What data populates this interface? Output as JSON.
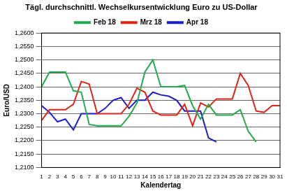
{
  "chart_data": {
    "type": "line",
    "title": "Tägl. durchschnittl. Wechselkursentwicklung Euro zu US-Dollar",
    "x_label": "Kalendertag",
    "y_label": "Euro/USD",
    "categories": [
      "1",
      "2",
      "3",
      "4",
      "5",
      "6",
      "7",
      "8",
      "9",
      "10",
      "11",
      "12",
      "13",
      "14",
      "15",
      "16",
      "17",
      "18",
      "19",
      "20",
      "21",
      "22",
      "23",
      "24",
      "25",
      "26",
      "27",
      "28",
      "29",
      "30",
      "31"
    ],
    "series": [
      {
        "name": "Feb 18",
        "color": "#22aa4c",
        "values": [
          1.24,
          1.2455,
          1.2455,
          1.2455,
          1.2385,
          1.238,
          1.226,
          1.2255,
          1.2255,
          1.2255,
          1.2255,
          1.229,
          1.234,
          1.2455,
          1.25,
          1.24,
          1.24,
          1.24,
          1.2405,
          1.233,
          1.228,
          1.2335,
          1.2295,
          1.2295,
          1.2295,
          1.2315,
          1.2235,
          1.2195,
          null,
          null,
          null
        ]
      },
      {
        "name": "Mrz 18",
        "color": "#e02418",
        "values": [
          1.2275,
          1.2315,
          1.2315,
          1.2315,
          1.2335,
          1.242,
          1.241,
          1.23,
          1.23,
          1.23,
          1.23,
          1.2335,
          1.2395,
          1.238,
          1.231,
          1.2295,
          1.2295,
          1.2295,
          1.2335,
          1.2255,
          1.234,
          1.2325,
          1.2355,
          1.2355,
          1.2355,
          1.245,
          1.2405,
          1.231,
          1.2305,
          1.233,
          1.233
        ]
      },
      {
        "name": "Apr 18",
        "color": "#1c1cc8",
        "values": [
          1.233,
          1.2305,
          1.227,
          1.228,
          1.224,
          1.23,
          1.23,
          1.23,
          1.232,
          1.235,
          1.236,
          1.232,
          1.235,
          1.235,
          1.238,
          1.237,
          1.2365,
          1.235,
          1.231,
          1.231,
          1.231,
          1.221,
          1.2195,
          null,
          null,
          null,
          null,
          null,
          null,
          null,
          null
        ]
      }
    ],
    "ylim": [
      1.21,
      1.26
    ],
    "yticks": [
      {
        "value": 1.21,
        "label": "1,2100"
      },
      {
        "value": 1.215,
        "label": "1,2150"
      },
      {
        "value": 1.22,
        "label": "1,2200"
      },
      {
        "value": 1.225,
        "label": "1,2250"
      },
      {
        "value": 1.23,
        "label": "1,2300"
      },
      {
        "value": 1.235,
        "label": "1,2350"
      },
      {
        "value": 1.24,
        "label": "1,2400"
      },
      {
        "value": 1.245,
        "label": "1,2450"
      },
      {
        "value": 1.25,
        "label": "1,2500"
      },
      {
        "value": 1.255,
        "label": "1,2550"
      },
      {
        "value": 1.26,
        "label": "1,2600"
      }
    ],
    "grid": true,
    "legend": "top"
  }
}
